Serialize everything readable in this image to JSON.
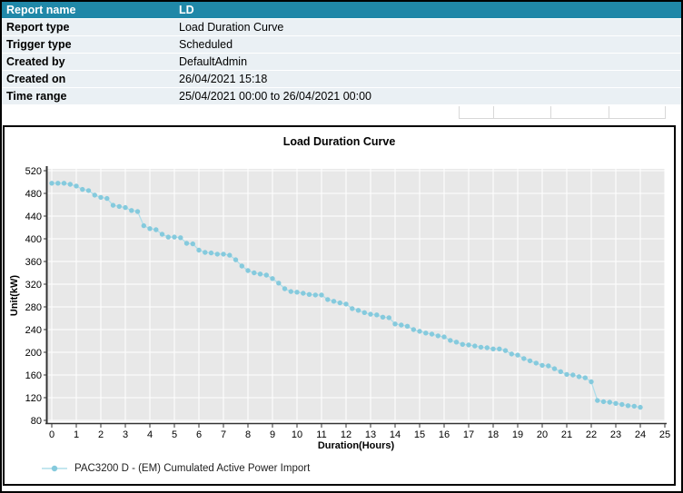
{
  "report_table": {
    "header": {
      "label": "Report name",
      "value": "LD"
    },
    "rows": [
      {
        "label": "Report type",
        "value": "Load Duration Curve"
      },
      {
        "label": "Trigger type",
        "value": "Scheduled"
      },
      {
        "label": "Created by",
        "value": "DefaultAdmin"
      },
      {
        "label": "Created on",
        "value": "26/04/2021 15:18"
      },
      {
        "label": "Time range",
        "value": "25/04/2021 00:00 to 26/04/2021 00:00"
      }
    ]
  },
  "colors": {
    "header_bg": "#2088A8",
    "header_text": "#FFFFFF",
    "row_bg": "#EAF0F4",
    "row_divider": "#FFFFFF",
    "cell_border": "#D8D8D8",
    "panel_border": "#000000",
    "text": "#000000"
  },
  "chart_data": {
    "type": "line",
    "title": "Load Duration Curve",
    "xlabel": "Duration(Hours)",
    "ylabel": "Unit(kW)",
    "xlim": [
      0,
      25
    ],
    "ylim": [
      80,
      520
    ],
    "xticks": [
      0,
      1,
      2,
      3,
      4,
      5,
      6,
      7,
      8,
      9,
      10,
      11,
      12,
      13,
      14,
      15,
      16,
      17,
      18,
      19,
      20,
      21,
      22,
      23,
      24,
      25
    ],
    "yticks": [
      520,
      480,
      440,
      400,
      360,
      320,
      280,
      240,
      200,
      160,
      120,
      80
    ],
    "grid": true,
    "plot_bg": "#E8E8E8",
    "grid_color": "#FFFFFF",
    "axis_color": "#333333",
    "legend_position": "bottom-left",
    "series": [
      {
        "name": "PAC3200 D - (EM) Cumulated Active Power Import",
        "color": "#85CADD",
        "line_color": "#AFDEEA",
        "x_start": 0,
        "x_interval": 0.25,
        "x_unit": "hours",
        "values": [
          498,
          498,
          498,
          496,
          493,
          487,
          485,
          477,
          473,
          471,
          459,
          457,
          455,
          450,
          448,
          423,
          418,
          416,
          408,
          403,
          403,
          402,
          392,
          391,
          380,
          376,
          375,
          373,
          373,
          371,
          363,
          352,
          344,
          340,
          338,
          336,
          330,
          322,
          312,
          307,
          306,
          304,
          302,
          301,
          301,
          293,
          290,
          287,
          285,
          277,
          274,
          270,
          267,
          266,
          262,
          261,
          250,
          248,
          246,
          240,
          237,
          234,
          232,
          229,
          227,
          221,
          218,
          214,
          213,
          211,
          209,
          208,
          206,
          206,
          203,
          197,
          195,
          189,
          185,
          181,
          177,
          176,
          171,
          166,
          161,
          160,
          157,
          155,
          148,
          115,
          113,
          112,
          110,
          108,
          106,
          105,
          103
        ]
      }
    ]
  }
}
